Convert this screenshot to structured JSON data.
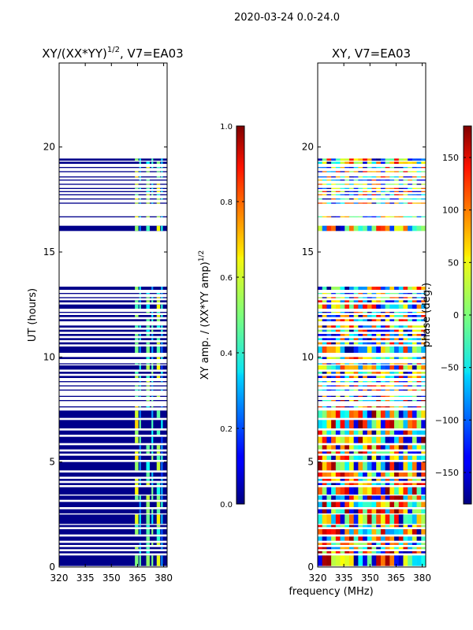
{
  "suptitle": "2020-03-24 0.0-24.0",
  "xlabel_shared": "frequency (MHz)",
  "chart_data": [
    {
      "type": "heatmap",
      "title": "XY/(XX*YY)",
      "title_exponent": "1/2",
      "title_suffix": ", V7=EA03",
      "xlabel": "",
      "ylabel": "UT (hours)",
      "xlim": [
        320,
        382
      ],
      "ylim": [
        0,
        24
      ],
      "xticks": [
        320,
        335,
        350,
        365,
        380
      ],
      "yticks": [
        0,
        5,
        10,
        15,
        20
      ],
      "colorbar": {
        "label": "XY amp. / (XX*YY amp)",
        "label_exponent": "1/2",
        "range": [
          0.0,
          1.0
        ],
        "ticks": [
          0.0,
          0.2,
          0.4,
          0.6,
          0.8,
          1.0
        ],
        "tick_labels": [
          "0.0",
          "0.2",
          "0.4",
          "0.6",
          "0.8",
          "1.0"
        ],
        "colormap": "jet"
      },
      "data_hours": [
        [
          0.05,
          0.55
        ],
        [
          0.65,
          0.75
        ],
        [
          0.85,
          0.95
        ],
        [
          1.05,
          1.15
        ],
        [
          1.25,
          1.45
        ],
        [
          1.55,
          1.8
        ],
        [
          1.9,
          2.0
        ],
        [
          2.05,
          2.5
        ],
        [
          2.55,
          2.75
        ],
        [
          2.85,
          3.1
        ],
        [
          3.2,
          3.4
        ],
        [
          3.45,
          3.8
        ],
        [
          3.9,
          4.0
        ],
        [
          4.1,
          4.2
        ],
        [
          4.3,
          4.5
        ],
        [
          4.6,
          5.0
        ],
        [
          5.1,
          5.3
        ],
        [
          5.4,
          5.5
        ],
        [
          5.6,
          5.8
        ],
        [
          5.9,
          6.2
        ],
        [
          6.3,
          6.5
        ],
        [
          6.6,
          7.0
        ],
        [
          7.1,
          7.45
        ],
        [
          7.6,
          7.65
        ],
        [
          7.9,
          7.95
        ],
        [
          8.1,
          8.15
        ],
        [
          8.4,
          8.45
        ],
        [
          8.6,
          8.65
        ],
        [
          8.8,
          8.85
        ],
        [
          9.0,
          9.1
        ],
        [
          9.2,
          9.3
        ],
        [
          9.4,
          9.6
        ],
        [
          9.65,
          9.7
        ],
        [
          9.9,
          10.0
        ],
        [
          10.2,
          10.5
        ],
        [
          10.6,
          10.7
        ],
        [
          10.8,
          10.9
        ],
        [
          11.0,
          11.1
        ],
        [
          11.2,
          11.3
        ],
        [
          11.4,
          11.5
        ],
        [
          11.7,
          11.8
        ],
        [
          11.9,
          12.0
        ],
        [
          12.1,
          12.15
        ],
        [
          12.3,
          12.5
        ],
        [
          12.6,
          12.7
        ],
        [
          12.8,
          12.85
        ],
        [
          13.0,
          13.05
        ],
        [
          13.2,
          13.35
        ],
        [
          16.0,
          16.25
        ],
        [
          16.65,
          16.7
        ],
        [
          17.3,
          17.35
        ],
        [
          17.5,
          17.55
        ],
        [
          17.7,
          17.75
        ],
        [
          17.85,
          17.9
        ],
        [
          18.0,
          18.05
        ],
        [
          18.2,
          18.25
        ],
        [
          18.4,
          18.45
        ],
        [
          18.55,
          18.6
        ],
        [
          18.8,
          18.85
        ],
        [
          19.0,
          19.05
        ],
        [
          19.2,
          19.3
        ],
        [
          19.35,
          19.45
        ]
      ]
    },
    {
      "type": "heatmap",
      "title": "XY, V7=EA03",
      "xlabel": "frequency (MHz)",
      "ylabel": "",
      "xlim": [
        320,
        382
      ],
      "ylim": [
        0,
        24
      ],
      "xticks": [
        320,
        335,
        350,
        365,
        380
      ],
      "yticks": [
        0,
        5,
        10,
        15,
        20
      ],
      "colorbar": {
        "label": "phase (deg.)",
        "range": [
          -180,
          180
        ],
        "ticks": [
          -150,
          -100,
          -50,
          0,
          50,
          100,
          150
        ],
        "tick_labels": [
          "−150",
          "−100",
          "−50",
          "0",
          "50",
          "100",
          "150"
        ],
        "colormap": "jet"
      },
      "data_hours": [
        [
          0.05,
          0.55
        ],
        [
          0.65,
          0.75
        ],
        [
          0.85,
          0.95
        ],
        [
          1.05,
          1.15
        ],
        [
          1.25,
          1.45
        ],
        [
          1.55,
          1.8
        ],
        [
          1.9,
          2.0
        ],
        [
          2.05,
          2.5
        ],
        [
          2.55,
          2.75
        ],
        [
          2.85,
          3.1
        ],
        [
          3.2,
          3.4
        ],
        [
          3.45,
          3.8
        ],
        [
          3.9,
          4.0
        ],
        [
          4.1,
          4.2
        ],
        [
          4.3,
          4.5
        ],
        [
          4.6,
          5.0
        ],
        [
          5.1,
          5.3
        ],
        [
          5.4,
          5.5
        ],
        [
          5.6,
          5.8
        ],
        [
          5.9,
          6.2
        ],
        [
          6.3,
          6.5
        ],
        [
          6.6,
          7.0
        ],
        [
          7.1,
          7.45
        ],
        [
          7.6,
          7.65
        ],
        [
          7.9,
          7.95
        ],
        [
          8.1,
          8.15
        ],
        [
          8.4,
          8.45
        ],
        [
          8.6,
          8.65
        ],
        [
          8.8,
          8.85
        ],
        [
          9.0,
          9.1
        ],
        [
          9.2,
          9.3
        ],
        [
          9.4,
          9.6
        ],
        [
          9.65,
          9.7
        ],
        [
          9.9,
          10.0
        ],
        [
          10.2,
          10.5
        ],
        [
          10.6,
          10.7
        ],
        [
          10.8,
          10.9
        ],
        [
          11.0,
          11.1
        ],
        [
          11.2,
          11.3
        ],
        [
          11.4,
          11.5
        ],
        [
          11.7,
          11.8
        ],
        [
          11.9,
          12.0
        ],
        [
          12.1,
          12.15
        ],
        [
          12.3,
          12.5
        ],
        [
          12.6,
          12.7
        ],
        [
          12.8,
          12.85
        ],
        [
          13.0,
          13.05
        ],
        [
          13.2,
          13.35
        ],
        [
          16.0,
          16.25
        ],
        [
          16.65,
          16.7
        ],
        [
          17.3,
          17.35
        ],
        [
          17.5,
          17.55
        ],
        [
          17.7,
          17.75
        ],
        [
          17.85,
          17.9
        ],
        [
          18.0,
          18.05
        ],
        [
          18.2,
          18.25
        ],
        [
          18.4,
          18.45
        ],
        [
          18.55,
          18.6
        ],
        [
          18.8,
          18.85
        ],
        [
          19.0,
          19.05
        ],
        [
          19.2,
          19.3
        ],
        [
          19.35,
          19.45
        ]
      ]
    }
  ]
}
